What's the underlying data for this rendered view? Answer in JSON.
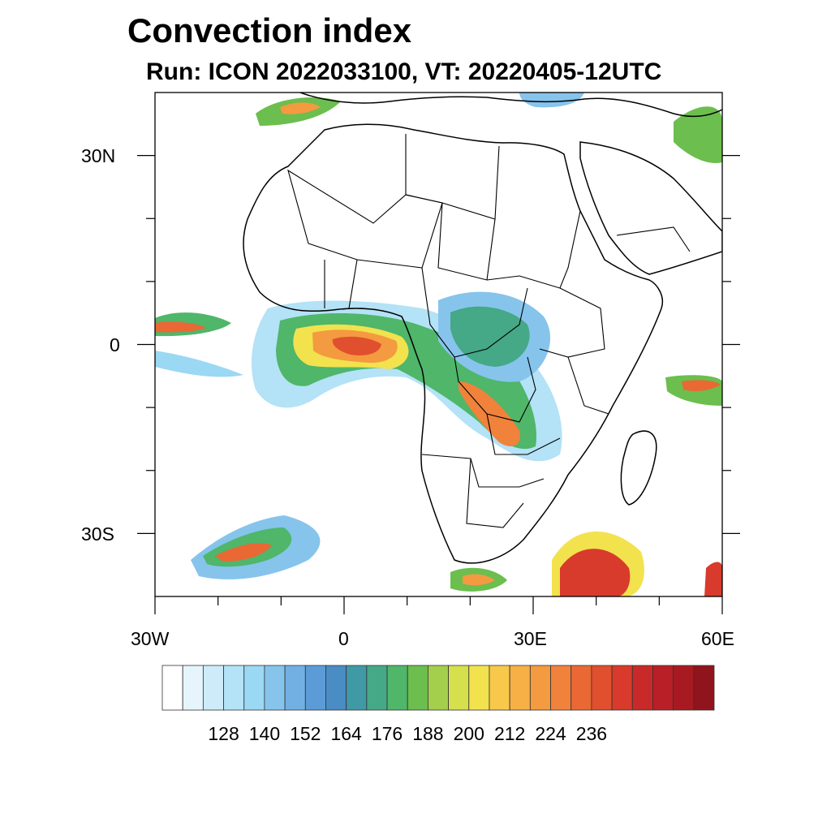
{
  "title": "Convection index",
  "subtitle": "Run: ICON 2022033100,  VT: 20220405-12UTC",
  "axes": {
    "lon_labels": [
      "30W",
      "0",
      "30E",
      "60E"
    ],
    "lat_labels": [
      "30N",
      "0",
      "30S"
    ],
    "lon_range": [
      -30,
      60
    ],
    "lat_range": [
      -40,
      40
    ]
  },
  "colorbar": {
    "labels": [
      "128",
      "140",
      "152",
      "164",
      "176",
      "188",
      "200",
      "212",
      "224",
      "236"
    ],
    "colors": [
      "#ffffff",
      "#e6f5fc",
      "#cdebf8",
      "#b4e2f6",
      "#9bd8f3",
      "#86c4ec",
      "#72b0e4",
      "#5b9cd8",
      "#4a8cc4",
      "#3f9aa6",
      "#45a886",
      "#4fb66a",
      "#6cbe4e",
      "#a3cf4c",
      "#d6df4c",
      "#f2e24e",
      "#f7c84a",
      "#f6b046",
      "#f49a40",
      "#f0823b",
      "#ea6834",
      "#e04f2e",
      "#d83b2b",
      "#c82a2a",
      "#b91f26",
      "#a81a22",
      "#8f141c"
    ]
  }
}
